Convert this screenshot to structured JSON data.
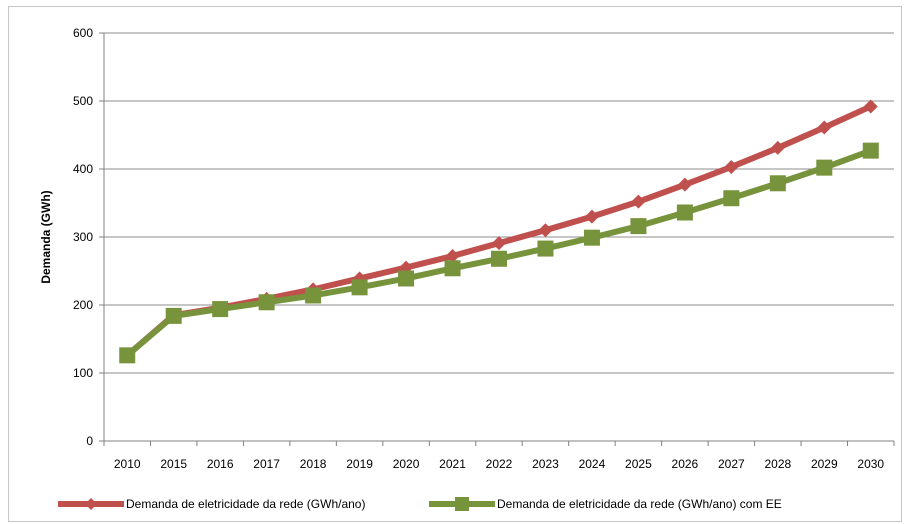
{
  "chart_data": {
    "type": "line",
    "title": "",
    "xlabel": "",
    "ylabel": "Demanda (GWh)",
    "categories": [
      "2010",
      "2015",
      "2016",
      "2017",
      "2018",
      "2019",
      "2020",
      "2021",
      "2022",
      "2023",
      "2024",
      "2025",
      "2026",
      "2027",
      "2028",
      "2029",
      "2030"
    ],
    "ylim": [
      0,
      600
    ],
    "yticks": [
      0,
      100,
      200,
      300,
      400,
      500,
      600
    ],
    "grid": true,
    "legend_position": "bottom",
    "series": [
      {
        "name": "Demanda de eletricidade da rede (GWh/ano)",
        "color": "#c0504d",
        "marker": "diamond",
        "values": [
          126,
          185,
          196,
          209,
          223,
          239,
          255,
          272,
          291,
          310,
          330,
          352,
          377,
          403,
          431,
          461,
          492
        ]
      },
      {
        "name": "Demanda de eletricidade da rede (GWh/ano) com EE",
        "color": "#77933c",
        "marker": "square",
        "values": [
          126,
          184,
          194,
          204,
          214,
          226,
          239,
          254,
          268,
          283,
          299,
          316,
          336,
          357,
          379,
          402,
          427
        ]
      }
    ]
  }
}
